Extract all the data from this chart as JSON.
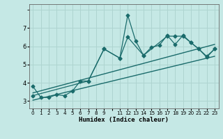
{
  "xlabel": "Humidex (Indice chaleur)",
  "bg_color": "#c5e8e5",
  "grid_color": "#aed4d0",
  "line_color": "#1a6b6b",
  "xlim": [
    -0.5,
    23.5
  ],
  "ylim": [
    2.6,
    8.3
  ],
  "yticks": [
    3,
    4,
    5,
    6,
    7
  ],
  "xtick_labels": [
    "0",
    "1",
    "2",
    "3",
    "4",
    "5",
    "6",
    "7",
    "8",
    "9",
    "",
    "11",
    "12",
    "13",
    "14",
    "15",
    "16",
    "17",
    "18",
    "19",
    "20",
    "21",
    "22",
    "23"
  ],
  "line1_x": [
    0,
    1,
    2,
    3,
    4,
    5,
    6,
    7,
    9,
    11,
    12,
    13,
    14,
    15,
    16,
    17,
    18,
    19,
    20,
    21,
    22,
    23
  ],
  "line1_y": [
    3.8,
    3.2,
    3.2,
    3.35,
    3.3,
    3.55,
    4.1,
    4.1,
    5.85,
    5.35,
    7.7,
    6.3,
    5.5,
    5.95,
    6.05,
    6.6,
    6.1,
    6.6,
    6.2,
    5.85,
    5.4,
    5.85
  ],
  "line2_x": [
    0,
    7,
    9,
    11,
    12,
    14,
    17,
    18,
    19,
    20,
    21,
    22,
    23
  ],
  "line2_y": [
    3.3,
    4.1,
    5.85,
    5.35,
    6.5,
    5.5,
    6.55,
    6.55,
    6.55,
    6.2,
    5.85,
    5.45,
    5.85
  ],
  "line3_x": [
    0,
    23
  ],
  "line3_y": [
    3.05,
    5.45
  ],
  "line4_x": [
    0,
    23
  ],
  "line4_y": [
    3.45,
    6.1
  ]
}
